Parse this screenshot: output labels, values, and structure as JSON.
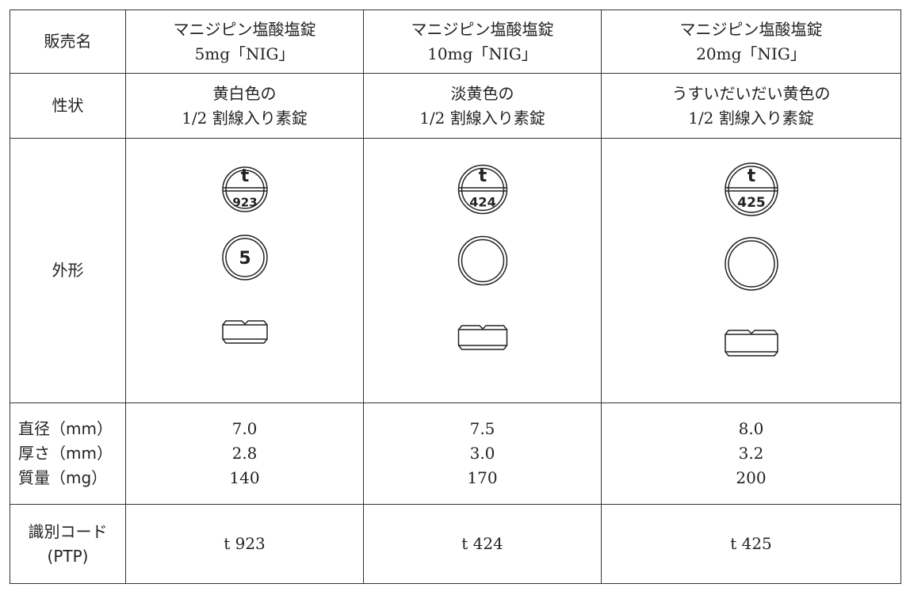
{
  "table": {
    "rows": [
      {
        "label": [
          "販売名"
        ],
        "cells": [
          [
            "マニジピン塩酸塩錠",
            "5mg「NIG」"
          ],
          [
            "マニジピン塩酸塩錠",
            "10mg「NIG」"
          ],
          [
            "マニジピン塩酸塩錠",
            "20mg「NIG」"
          ]
        ]
      },
      {
        "label": [
          "性状"
        ],
        "cells": [
          [
            "黄白色の",
            "1/2 割線入り素錠"
          ],
          [
            "淡黄色の",
            "1/2 割線入り素錠"
          ],
          [
            "うすいだいだい黄色の",
            "1/2 割線入り素錠"
          ]
        ]
      },
      {
        "label": [
          "外形"
        ],
        "pills": [
          {
            "top": "t",
            "bottom": "923",
            "back": "5"
          },
          {
            "top": "t",
            "bottom": "424"
          },
          {
            "top": "t",
            "bottom": "425"
          }
        ]
      },
      {
        "label": [
          "直径（mm）",
          "厚さ（mm）",
          "質量（mg）"
        ],
        "cells": [
          [
            "7.0",
            "2.8",
            "140"
          ],
          [
            "7.5",
            "3.0",
            "170"
          ],
          [
            "8.0",
            "3.2",
            "200"
          ]
        ]
      },
      {
        "label": [
          "識別コード",
          "(PTP)"
        ],
        "cells": [
          [
            "t 923"
          ],
          [
            "t 424"
          ],
          [
            "t 425"
          ]
        ]
      }
    ]
  }
}
